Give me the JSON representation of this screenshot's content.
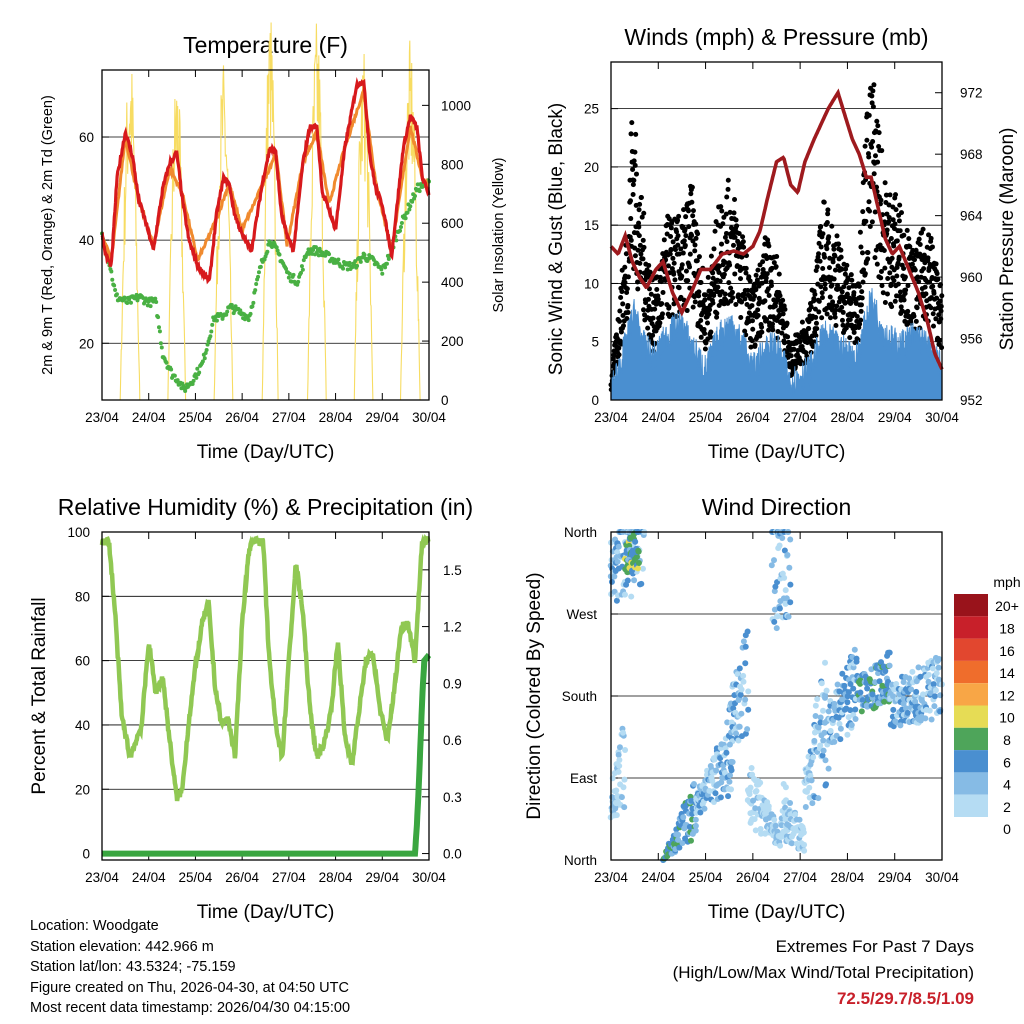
{
  "x_ticks": [
    "23/04",
    "24/04",
    "25/04",
    "26/04",
    "27/04",
    "28/04",
    "29/04",
    "30/04"
  ],
  "info": {
    "location": "Location: Woodgate",
    "elevation": "Station elevation: 442.966 m",
    "latlon": "Station lat/lon: 43.5324; -75.159",
    "created": "Figure created on Thu, 2026-04-30, at 04:50 UTC",
    "recent": "Most recent data timestamp: 2026/04/30 04:15:00"
  },
  "extremes": {
    "title": "Extremes For Past 7 Days",
    "subtitle": "(High/Low/Max Wind/Total Precipitation)",
    "values": "72.5/29.7/8.5/1.09"
  },
  "chart_data": [
    {
      "id": "temp",
      "type": "line",
      "title": "Temperature (F)",
      "xlabel": "Time (Day/UTC)",
      "ylabel": "2m & 9m T (Red, Orange) & 2m Td (Green)",
      "y2label": "Solar Insolation (Yellow)",
      "xlim": [
        0,
        7
      ],
      "ylim": [
        9,
        73
      ],
      "y2lim": [
        0,
        1120
      ],
      "yticks": [
        20,
        40,
        60
      ],
      "y2ticks": [
        0,
        200,
        400,
        600,
        800,
        1000
      ],
      "gridlines": [
        20,
        40,
        60
      ],
      "colors": {
        "t2m": "#d7191c",
        "t9m": "#f08a2e",
        "td2m": "#49b043",
        "solar": "#f7dc62"
      },
      "series": [
        {
          "name": "2m T",
          "key": "t2m",
          "x": [
            0,
            0.08,
            0.2,
            0.32,
            0.5,
            0.66,
            0.78,
            0.92,
            1.1,
            1.3,
            1.45,
            1.6,
            1.72,
            1.86,
            2.05,
            2.3,
            2.45,
            2.6,
            2.72,
            2.84,
            3.0,
            3.2,
            3.45,
            3.6,
            3.72,
            3.84,
            3.96,
            4.1,
            4.3,
            4.45,
            4.6,
            4.72,
            4.86,
            5.0,
            5.2,
            5.45,
            5.6,
            5.74,
            5.86,
            6.0,
            6.2,
            6.45,
            6.6,
            6.74,
            6.86,
            7.0
          ],
          "y": [
            41,
            37,
            35,
            52,
            61,
            56,
            48,
            44,
            38,
            50,
            55,
            57,
            48,
            40,
            35,
            32,
            45,
            52,
            51,
            45,
            41,
            38,
            52,
            58,
            57,
            45,
            41,
            38,
            55,
            62,
            62,
            49,
            46,
            42,
            58,
            70,
            71,
            56,
            50,
            47,
            37,
            58,
            64,
            62,
            52,
            49
          ]
        },
        {
          "name": "9m T",
          "key": "t9m",
          "x": [
            0,
            0.2,
            0.5,
            0.78,
            1.1,
            1.45,
            1.72,
            2.05,
            2.45,
            2.72,
            3.0,
            3.45,
            3.72,
            3.96,
            4.3,
            4.6,
            4.86,
            5.2,
            5.6,
            5.86,
            6.2,
            6.6,
            6.86,
            7.0
          ],
          "y": [
            41,
            36,
            60,
            48,
            39,
            54,
            49,
            36,
            44,
            51,
            42,
            51,
            57,
            39,
            55,
            61,
            47,
            58,
            69,
            51,
            38,
            62,
            52,
            50
          ]
        },
        {
          "name": "2m Td",
          "key": "td2m",
          "x": [
            0,
            0.15,
            0.3,
            0.55,
            0.8,
            1.0,
            1.15,
            1.3,
            1.5,
            1.62,
            1.75,
            1.95,
            2.15,
            2.4,
            2.55,
            2.75,
            2.95,
            3.15,
            3.4,
            3.6,
            3.8,
            4.0,
            4.2,
            4.4,
            4.6,
            4.8,
            5.0,
            5.2,
            5.4,
            5.6,
            5.8,
            6.0,
            6.15,
            6.35,
            6.55,
            6.75,
            6.95,
            7.0
          ],
          "y": [
            41,
            36,
            29,
            28,
            29,
            28,
            28,
            18,
            14,
            13,
            11,
            13,
            16,
            25,
            25,
            27,
            26,
            25,
            35,
            40,
            37,
            33,
            32,
            38,
            38,
            37,
            36,
            35,
            35,
            37,
            36,
            34,
            37,
            42,
            46,
            50,
            51,
            51
          ]
        },
        {
          "name": "Solar Insolation",
          "key": "solar",
          "axis": "y2",
          "days": [
            {
              "peak": 1000,
              "w": 0.42
            },
            {
              "peak": 940,
              "w": 0.38
            },
            {
              "peak": 960,
              "w": 0.4
            },
            {
              "peak": 1120,
              "w": 0.34
            },
            {
              "peak": 1080,
              "w": 0.4
            },
            {
              "peak": 1000,
              "w": 0.4
            },
            {
              "peak": 1020,
              "w": 0.42
            }
          ],
          "noon": 0.6
        }
      ]
    },
    {
      "id": "wind",
      "type": "scatter",
      "title": "Winds (mph) & Pressure (mb)",
      "xlabel": "Time (Day/UTC)",
      "ylabel": "Sonic Wind & Gust (Blue, Black)",
      "y2label": "Station Pressure (Maroon)",
      "xlim": [
        0,
        7
      ],
      "ylim": [
        0,
        29
      ],
      "y2lim": [
        952,
        974
      ],
      "yticks": [
        0,
        5,
        10,
        15,
        20,
        25
      ],
      "y2ticks": [
        952,
        956,
        960,
        964,
        968,
        972
      ],
      "gridlines": [
        5,
        10,
        15,
        20,
        25
      ],
      "colors": {
        "gust": "#000000",
        "wind": "#4a8fd0",
        "pressure": "#9e1a1e"
      },
      "series": [
        {
          "name": "Gust",
          "key": "gust",
          "x": [
            0,
            0.35,
            0.45,
            0.6,
            0.9,
            1.2,
            1.5,
            1.7,
            2.0,
            2.3,
            2.5,
            2.65,
            3.0,
            3.25,
            3.5,
            3.8,
            4.2,
            4.5,
            4.8,
            5.2,
            5.4,
            5.55,
            5.8,
            6.1,
            6.4,
            6.7,
            7.0
          ],
          "y": [
            1,
            10,
            17,
            12,
            6,
            10,
            10,
            12,
            6,
            11,
            12,
            11,
            6,
            9,
            8,
            3,
            5,
            11,
            9,
            6,
            16,
            18,
            12,
            11,
            8,
            10,
            6
          ]
        },
        {
          "name": "Sonic Wind",
          "key": "wind",
          "x": [
            0,
            0.3,
            0.5,
            0.7,
            0.9,
            1.2,
            1.5,
            1.7,
            2.0,
            2.3,
            2.55,
            2.8,
            3.0,
            3.3,
            3.5,
            3.8,
            4.2,
            4.5,
            4.8,
            5.2,
            5.5,
            5.8,
            6.1,
            6.4,
            6.7,
            7.0
          ],
          "y": [
            0,
            4,
            7,
            4,
            3,
            5,
            6,
            4,
            2,
            5,
            6,
            4,
            2,
            4,
            4,
            1,
            2,
            5,
            4,
            3,
            8,
            5,
            4,
            5,
            4,
            2
          ]
        },
        {
          "name": "Station Pressure",
          "key": "pressure",
          "axis": "y2",
          "x": [
            0,
            0.15,
            0.3,
            0.45,
            0.6,
            0.75,
            0.95,
            1.1,
            1.3,
            1.5,
            1.7,
            1.9,
            2.1,
            2.35,
            2.6,
            2.8,
            3.0,
            3.15,
            3.3,
            3.5,
            3.65,
            3.8,
            3.95,
            4.1,
            4.3,
            4.45,
            4.6,
            4.8,
            4.95,
            5.1,
            5.25,
            5.4,
            5.5,
            5.65,
            5.8,
            5.95,
            6.1,
            6.3,
            6.5,
            6.7,
            6.85,
            7.0
          ],
          "y": [
            962,
            961.5,
            962.7,
            961,
            960,
            959.3,
            960.5,
            961,
            959,
            957.7,
            959,
            960.5,
            960.5,
            961.5,
            961.7,
            961.5,
            962,
            963,
            965,
            967.5,
            967.8,
            966,
            965.5,
            967.5,
            969,
            970,
            971,
            972,
            970.5,
            969,
            968,
            966.5,
            966.5,
            964.5,
            962.5,
            961.5,
            962,
            960.5,
            959,
            957,
            955,
            954
          ]
        }
      ]
    },
    {
      "id": "rh",
      "type": "line",
      "title": "Relative Humidity (%) & Precipitation (in)",
      "xlabel": "Time (Day/UTC)",
      "ylabel": "Percent & Total Rainfall",
      "xlim": [
        0,
        7
      ],
      "ylim": [
        -2,
        100
      ],
      "y2lim": [
        -0.034,
        1.7
      ],
      "yticks": [
        0,
        20,
        40,
        60,
        80,
        100
      ],
      "y2ticks": [
        "0.0",
        "0.3",
        "0.6",
        "0.9",
        "1.2",
        "1.5"
      ],
      "gridlines": [
        20,
        40,
        60,
        80
      ],
      "colors": {
        "rh": "#90c853",
        "precip": "#3aa640"
      },
      "series": [
        {
          "name": "RH",
          "key": "rh",
          "x": [
            0,
            0.15,
            0.28,
            0.42,
            0.6,
            0.75,
            0.85,
            1.0,
            1.15,
            1.3,
            1.45,
            1.6,
            1.72,
            1.85,
            2.0,
            2.15,
            2.28,
            2.42,
            2.56,
            2.7,
            2.85,
            3.0,
            3.15,
            3.3,
            3.45,
            3.58,
            3.72,
            3.86,
            4.0,
            4.15,
            4.3,
            4.45,
            4.6,
            4.75,
            4.9,
            5.05,
            5.2,
            5.35,
            5.5,
            5.65,
            5.8,
            5.95,
            6.1,
            6.25,
            6.4,
            6.55,
            6.7,
            6.85,
            7.0
          ],
          "y": [
            97,
            97,
            75,
            43,
            30,
            36,
            40,
            66,
            50,
            55,
            35,
            17,
            20,
            40,
            58,
            72,
            78,
            52,
            40,
            42,
            30,
            72,
            95,
            98,
            97,
            60,
            40,
            30,
            60,
            90,
            75,
            45,
            30,
            34,
            44,
            66,
            36,
            28,
            44,
            60,
            62,
            45,
            35,
            50,
            70,
            72,
            60,
            97,
            97
          ]
        },
        {
          "name": "Total Precipitation",
          "key": "precip",
          "axis": "y2",
          "x": [
            0,
            6.7,
            6.74,
            6.78,
            6.82,
            6.86,
            6.9,
            7.0
          ],
          "y": [
            0,
            0,
            0.15,
            0.35,
            0.6,
            0.85,
            1.02,
            1.05
          ]
        }
      ]
    },
    {
      "id": "dir",
      "type": "scatter",
      "title": "Wind Direction",
      "xlabel": "Time (Day/UTC)",
      "ylabel": "Direction (Colored By Speed)",
      "xlim": [
        0,
        7
      ],
      "ylim": [
        0,
        360
      ],
      "yticks": [
        {
          "v": 0,
          "label": "North"
        },
        {
          "v": 90,
          "label": "East"
        },
        {
          "v": 180,
          "label": "South"
        },
        {
          "v": 270,
          "label": "West"
        },
        {
          "v": 360,
          "label": "North"
        }
      ],
      "gridlines": [
        90,
        180,
        270
      ],
      "legend": {
        "title": "mph",
        "labels": [
          "20+",
          "18",
          "16",
          "14",
          "12",
          "10",
          "8",
          "6",
          "4",
          "2",
          "0"
        ],
        "colors": [
          "#99131b",
          "#c8202a",
          "#e2472f",
          "#ef6d2c",
          "#f8a646",
          "#e6dc55",
          "#4ea55a",
          "#4a8fd0",
          "#86bbe5",
          "#b5dcf3"
        ]
      },
      "segments": [
        {
          "x": [
            0,
            0.7
          ],
          "y": [
            320,
            350
          ],
          "ymin": 250,
          "sp": 3
        },
        {
          "x": [
            0.3,
            0.6
          ],
          "y": [
            330,
            345
          ],
          "ymin": 300,
          "sp": 6
        },
        {
          "x": [
            1.1,
            1.8
          ],
          "y": [
            0,
            60
          ],
          "ymin": 0,
          "sp": 5
        },
        {
          "x": [
            1.8,
            2.6
          ],
          "y": [
            60,
            120
          ],
          "ymin": 40,
          "sp": 3
        },
        {
          "x": [
            2.5,
            2.9
          ],
          "y": [
            150,
            200
          ],
          "ymin": 100,
          "sp": 3
        },
        {
          "x": [
            2.9,
            3.6
          ],
          "y": [
            80,
            20
          ],
          "ymin": 10,
          "sp": 1
        },
        {
          "x": [
            3.4,
            3.8
          ],
          "y": [
            320,
            350
          ],
          "ymin": 200,
          "sp": 3
        },
        {
          "x": [
            3.6,
            4.1
          ],
          "y": [
            60,
            20
          ],
          "ymin": 0,
          "sp": 1
        },
        {
          "x": [
            4.1,
            4.6
          ],
          "y": [
            80,
            160
          ],
          "ymin": 30,
          "sp": 2
        },
        {
          "x": [
            4.6,
            5.2
          ],
          "y": [
            150,
            190
          ],
          "ymin": 110,
          "sp": 3
        },
        {
          "x": [
            5.2,
            5.9
          ],
          "y": [
            180,
            200
          ],
          "ymin": 150,
          "sp": 5
        },
        {
          "x": [
            5.9,
            7.0
          ],
          "y": [
            170,
            190
          ],
          "ymin": 130,
          "sp": 3
        },
        {
          "x": [
            0,
            0.3
          ],
          "y": [
            60,
            110
          ],
          "ymin": 20,
          "sp": 1
        }
      ]
    }
  ]
}
